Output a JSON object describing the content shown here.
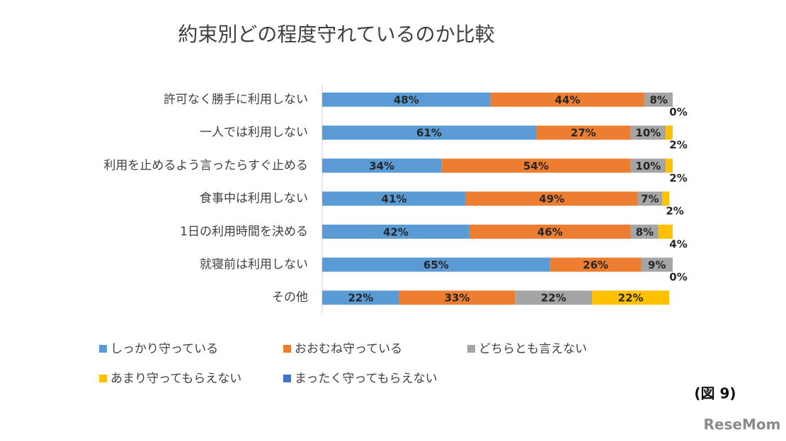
{
  "chart_data": {
    "type": "stacked-bar-horizontal",
    "title": "約束別どの程度守れているのか比較",
    "categories": [
      "許可なく勝手に利用しない",
      "一人では利用しない",
      "利用を止めるよう言ったらすぐ止める",
      "食事中は利用しない",
      "1日の利用時間を決める",
      "就寝前は利用しない",
      "その他"
    ],
    "xlim": [
      0,
      100
    ],
    "series": [
      {
        "name": "しっかり守っている",
        "color": "#5b9bd5",
        "values": [
          48,
          61,
          34,
          41,
          42,
          65,
          22
        ],
        "value_labels": [
          "48%",
          "61%",
          "34%",
          "41%",
          "42%",
          "65%",
          "22%"
        ]
      },
      {
        "name": "おおむね守っている",
        "color": "#ed7d31",
        "values": [
          44,
          27,
          54,
          49,
          46,
          26,
          33
        ],
        "value_labels": [
          "44%",
          "27%",
          "54%",
          "49%",
          "46%",
          "26%",
          "33%"
        ]
      },
      {
        "name": "どちらとも言えない",
        "color": "#a5a5a5",
        "values": [
          8,
          10,
          10,
          7,
          8,
          9,
          22
        ],
        "value_labels": [
          "8%",
          "10%",
          "10%",
          "7%",
          "8%",
          "9%",
          "22%"
        ]
      },
      {
        "name": "あまり守ってもらえない",
        "color": "#ffc000",
        "values": [
          0,
          2,
          2,
          2,
          4,
          0,
          22
        ],
        "value_labels": [
          "0%",
          "2%",
          "2%",
          "2%",
          "4%",
          "0%",
          "22%"
        ]
      },
      {
        "name": "まったく守ってもらえない",
        "color": "#4472c4",
        "values": [
          0,
          0,
          0,
          0,
          0,
          0,
          0
        ]
      }
    ],
    "figure_label": "(図 9)",
    "watermark": "ReseMom"
  }
}
